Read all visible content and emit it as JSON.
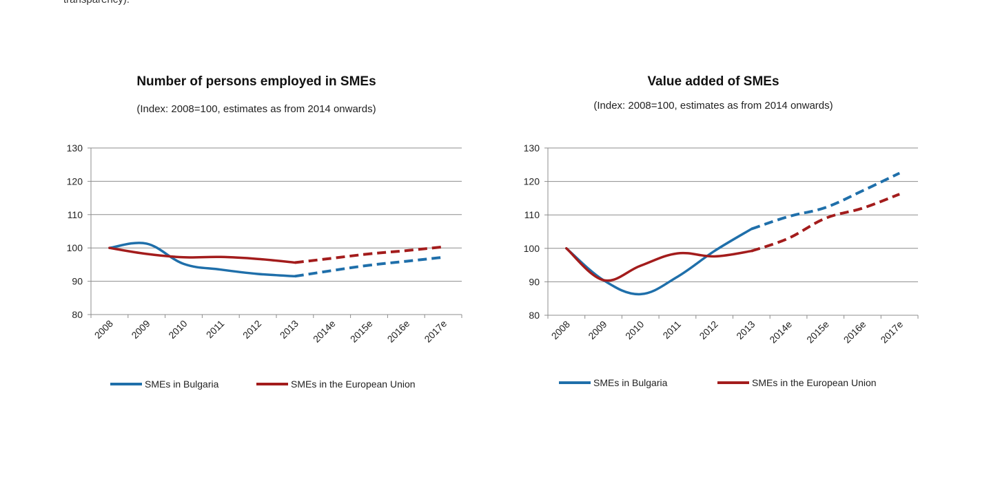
{
  "page": {
    "top_fragment": "transparency)."
  },
  "colors": {
    "bulgaria": "#1f6faa",
    "eu": "#a31c1c",
    "grid": "#8c8c8c"
  },
  "chart_data": [
    {
      "type": "line",
      "title": "Number of persons employed in SMEs",
      "subtitle": "(Index: 2008=100, estimates as from 2014 onwards)",
      "categories": [
        "2008",
        "2009",
        "2010",
        "2011",
        "2012",
        "2013",
        "2014e",
        "2015e",
        "2016e",
        "2017e"
      ],
      "ylim": [
        80,
        130
      ],
      "yticks": [
        80,
        90,
        100,
        110,
        120,
        130
      ],
      "grid": true,
      "estimates_from_index": 5,
      "legend_position": "bottom",
      "series": [
        {
          "name": "SMEs in Bulgaria",
          "color": "#1f6faa",
          "values": [
            100,
            101.3,
            95.2,
            93.5,
            92.2,
            91.5,
            93.2,
            94.8,
            96,
            97.2
          ]
        },
        {
          "name": "SMEs in the European Union",
          "color": "#a31c1c",
          "values": [
            100,
            98.2,
            97.2,
            97.3,
            96.7,
            95.6,
            96.9,
            98.2,
            99.2,
            100.3
          ]
        }
      ]
    },
    {
      "type": "line",
      "title": "Value added of SMEs",
      "subtitle": "(Index: 2008=100, estimates as from 2014 onwards)",
      "categories": [
        "2008",
        "2009",
        "2010",
        "2011",
        "2012",
        "2013",
        "2014e",
        "2015e",
        "2016e",
        "2017e"
      ],
      "ylim": [
        80,
        130
      ],
      "yticks": [
        80,
        90,
        100,
        110,
        120,
        130
      ],
      "grid": true,
      "estimates_from_index": 5,
      "legend_position": "bottom",
      "series": [
        {
          "name": "SMEs in Bulgaria",
          "color": "#1f6faa",
          "values": [
            100,
            90.5,
            86.3,
            91.5,
            99.2,
            105.8,
            109.5,
            112.2,
            117.2,
            122.5
          ]
        },
        {
          "name": "SMEs in the European Union",
          "color": "#a31c1c",
          "values": [
            100,
            90.5,
            94.8,
            98.5,
            97.6,
            99.2,
            103,
            109,
            112,
            116.2
          ]
        }
      ]
    }
  ]
}
